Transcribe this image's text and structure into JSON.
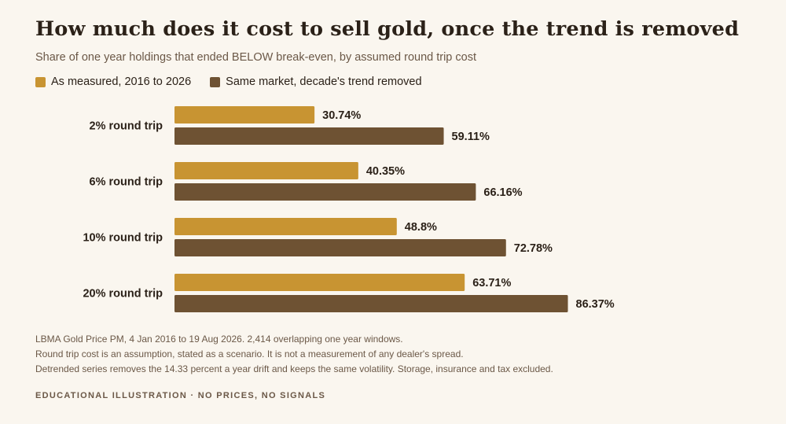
{
  "title": "How much does it cost to sell gold, once the trend is removed",
  "subtitle": "Share of one year holdings that ended BELOW break-even, by assumed round trip cost",
  "legend": [
    {
      "label": "As measured, 2016 to 2026",
      "color": "#c89432"
    },
    {
      "label": "Same market, decade's trend removed",
      "color": "#6e5233"
    }
  ],
  "notes": [
    "LBMA Gold Price PM, 4 Jan 2016 to 19 Aug 2026. 2,414 overlapping one year windows.",
    "Round trip cost is an assumption, stated as a scenario. It is not a measurement of any dealer's spread.",
    "Detrended series removes the 14.33 percent a year drift and keeps the same volatility. Storage, insurance and tax excluded."
  ],
  "footer": "EDUCATIONAL ILLUSTRATION · NO PRICES, NO SIGNALS",
  "chart_data": {
    "type": "bar",
    "orientation": "horizontal",
    "categories": [
      "2% round trip",
      "6% round trip",
      "10% round trip",
      "20% round trip"
    ],
    "series": [
      {
        "name": "As measured, 2016 to 2026",
        "color": "#c89432",
        "values": [
          30.74,
          40.35,
          48.8,
          63.71
        ]
      },
      {
        "name": "Same market, decade's trend removed",
        "color": "#6e5233",
        "values": [
          59.11,
          66.16,
          72.78,
          86.37
        ]
      }
    ],
    "value_suffix": "%",
    "xlim": [
      0,
      100
    ],
    "grid": false,
    "legend_position": "top-left"
  }
}
